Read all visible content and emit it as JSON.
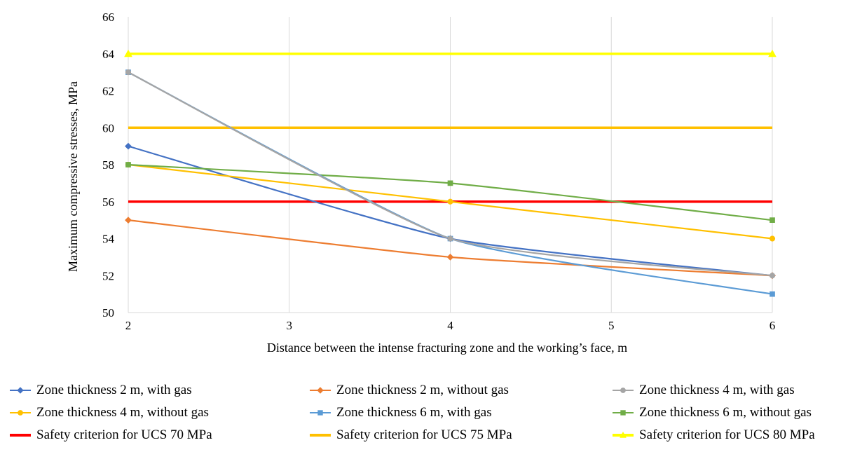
{
  "chart_data": {
    "type": "line",
    "xlabel": "Distance between the intense fracturing zone and the working’s face, m",
    "ylabel": "Maximum compressive stresses, MPa",
    "xlim": [
      2,
      6
    ],
    "ylim": [
      50,
      66
    ],
    "x_ticks": [
      "2",
      "3",
      "4",
      "5",
      "6"
    ],
    "y_ticks": [
      "50",
      "52",
      "54",
      "56",
      "58",
      "60",
      "62",
      "64",
      "66"
    ],
    "grid": "vertical",
    "legend_position": "bottom",
    "series": [
      {
        "name": "Zone thickness 2 m, with gas",
        "color": "#4472C4",
        "marker": "diamond",
        "x": [
          2,
          4,
          6
        ],
        "values": [
          59,
          54,
          52
        ]
      },
      {
        "name": "Zone thickness 2 m, without gas",
        "color": "#ED7D31",
        "marker": "diamond",
        "x": [
          2,
          4,
          6
        ],
        "values": [
          55,
          53,
          52
        ]
      },
      {
        "name": "Zone thickness 4 m, with gas",
        "color": "#A5A5A5",
        "marker": "circle",
        "x": [
          2,
          4,
          6
        ],
        "values": [
          63,
          54,
          52
        ]
      },
      {
        "name": "Zone thickness 4 m, without gas",
        "color": "#FFC000",
        "marker": "circle",
        "x": [
          2,
          4,
          6
        ],
        "values": [
          58,
          56,
          54
        ]
      },
      {
        "name": "Zone thickness 6 m, with gas",
        "color": "#5B9BD5",
        "marker": "square",
        "x": [
          2,
          4,
          6
        ],
        "values": [
          63,
          54,
          51
        ]
      },
      {
        "name": "Zone thickness 6 m, without gas",
        "color": "#70AD47",
        "marker": "square",
        "x": [
          2,
          4,
          6
        ],
        "values": [
          58,
          57,
          55
        ]
      },
      {
        "name": "Safety criterion for UCS 70 MPa",
        "color": "#FF0000",
        "marker": "none",
        "x": [
          2,
          6
        ],
        "values": [
          56,
          56
        ]
      },
      {
        "name": "Safety criterion for UCS 75 MPa",
        "color": "#FFC000",
        "marker": "none",
        "x": [
          2,
          6
        ],
        "values": [
          60,
          60
        ]
      },
      {
        "name": "Safety criterion for UCS 80 MPa",
        "color": "#FFFF00",
        "marker": "triangle",
        "x": [
          2,
          6
        ],
        "values": [
          64,
          64
        ]
      }
    ]
  }
}
